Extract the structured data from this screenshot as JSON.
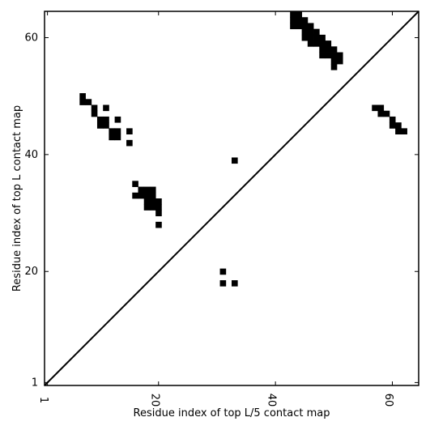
{
  "chart_data": {
    "type": "heatmap",
    "title": "",
    "xlabel": "Residue index of top L/5 contact map",
    "ylabel": "Residue index of top L contact map",
    "xlim": [
      0.5,
      64.5
    ],
    "ylim": [
      0.5,
      64.5
    ],
    "xticks": [
      {
        "value": 1,
        "label": "1"
      },
      {
        "value": 20,
        "label": "20"
      },
      {
        "value": 40,
        "label": "40"
      },
      {
        "value": 60,
        "label": "60"
      }
    ],
    "yticks": [
      {
        "value": 1,
        "label": "1"
      },
      {
        "value": 20,
        "label": "20"
      },
      {
        "value": 40,
        "label": "40"
      },
      {
        "value": 60,
        "label": "60"
      }
    ],
    "diagonal": true,
    "cell_color": "#000000",
    "cells": [
      [
        43,
        64
      ],
      [
        44,
        64
      ],
      [
        43,
        63
      ],
      [
        44,
        63
      ],
      [
        45,
        63
      ],
      [
        43,
        62
      ],
      [
        44,
        62
      ],
      [
        45,
        62
      ],
      [
        46,
        62
      ],
      [
        45,
        61
      ],
      [
        46,
        61
      ],
      [
        47,
        61
      ],
      [
        45,
        60
      ],
      [
        46,
        60
      ],
      [
        47,
        60
      ],
      [
        48,
        60
      ],
      [
        46,
        59
      ],
      [
        47,
        59
      ],
      [
        48,
        59
      ],
      [
        49,
        59
      ],
      [
        48,
        58
      ],
      [
        49,
        58
      ],
      [
        50,
        58
      ],
      [
        48,
        57
      ],
      [
        49,
        57
      ],
      [
        50,
        57
      ],
      [
        51,
        57
      ],
      [
        50,
        56
      ],
      [
        51,
        56
      ],
      [
        50,
        55
      ],
      [
        57,
        48
      ],
      [
        58,
        48
      ],
      [
        58,
        47
      ],
      [
        59,
        47
      ],
      [
        60,
        46
      ],
      [
        60,
        45
      ],
      [
        61,
        45
      ],
      [
        61,
        44
      ],
      [
        62,
        44
      ],
      [
        7,
        50
      ],
      [
        7,
        49
      ],
      [
        8,
        49
      ],
      [
        9,
        48
      ],
      [
        11,
        48
      ],
      [
        9,
        47
      ],
      [
        10,
        46
      ],
      [
        11,
        46
      ],
      [
        13,
        46
      ],
      [
        10,
        45
      ],
      [
        11,
        45
      ],
      [
        12,
        44
      ],
      [
        13,
        44
      ],
      [
        15,
        44
      ],
      [
        12,
        43
      ],
      [
        13,
        43
      ],
      [
        15,
        42
      ],
      [
        33,
        39
      ],
      [
        16,
        35
      ],
      [
        17,
        34
      ],
      [
        18,
        34
      ],
      [
        19,
        34
      ],
      [
        16,
        33
      ],
      [
        17,
        33
      ],
      [
        18,
        33
      ],
      [
        19,
        33
      ],
      [
        18,
        32
      ],
      [
        19,
        32
      ],
      [
        20,
        32
      ],
      [
        18,
        31
      ],
      [
        19,
        31
      ],
      [
        20,
        31
      ],
      [
        20,
        30
      ],
      [
        20,
        28
      ],
      [
        31,
        20
      ],
      [
        31,
        18
      ],
      [
        33,
        18
      ]
    ]
  }
}
